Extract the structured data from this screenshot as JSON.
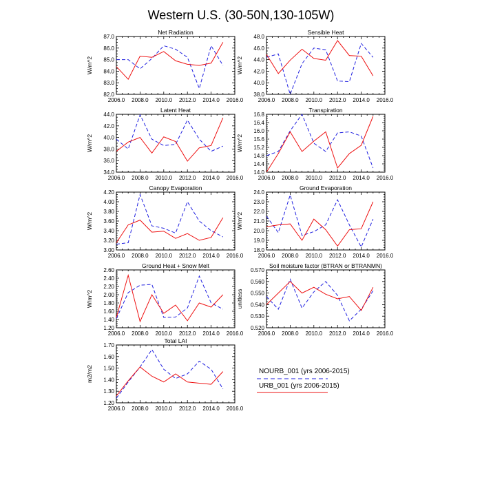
{
  "figure_title": "Western U.S. (30-50N,130-105W)",
  "colors": {
    "nourb": "#1f1fe0",
    "urb": "#ee1111",
    "axis": "#000000"
  },
  "legend": {
    "entries": [
      {
        "label": "NOURB_001 (yrs 2006-2015)",
        "series": "nourb",
        "style": "dashed"
      },
      {
        "label": "URB_001 (yrs 2006-2015)",
        "series": "urb",
        "style": "solid"
      }
    ]
  },
  "chart_data": [
    {
      "type": "line",
      "title": "Net Radiation",
      "ylabel": "W/m^2",
      "xlim": [
        2006,
        2016
      ],
      "ylim": [
        82,
        87
      ],
      "xticks": [
        "2006.0",
        "2008.0",
        "2010.0",
        "2012.0",
        "2014.0",
        "2016.0"
      ],
      "yticks": [
        "82.0",
        "83.0",
        "84.0",
        "85.0",
        "86.0",
        "87.0"
      ],
      "x": [
        2006,
        2007,
        2008,
        2009,
        2010,
        2011,
        2012,
        2013,
        2014,
        2015
      ],
      "series": [
        {
          "name": "NOURB_001",
          "values": [
            85.0,
            85.0,
            84.2,
            85.1,
            86.2,
            85.9,
            85.2,
            82.5,
            86.2,
            84.5
          ]
        },
        {
          "name": "URB_001",
          "values": [
            84.4,
            83.3,
            85.3,
            85.2,
            85.7,
            84.9,
            84.6,
            84.5,
            84.7,
            86.5
          ]
        }
      ]
    },
    {
      "type": "line",
      "title": "Sensible Heat",
      "ylabel": "W/m^2",
      "xlim": [
        2006,
        2016
      ],
      "ylim": [
        38,
        48
      ],
      "xticks": [
        "2006.0",
        "2008.0",
        "2010.0",
        "2012.0",
        "2014.0",
        "2016.0"
      ],
      "yticks": [
        "38.0",
        "40.0",
        "42.0",
        "44.0",
        "46.0",
        "48.0"
      ],
      "x": [
        2006,
        2007,
        2008,
        2009,
        2010,
        2011,
        2012,
        2013,
        2014,
        2015
      ],
      "series": [
        {
          "name": "NOURB_001",
          "values": [
            44.4,
            45.0,
            38.0,
            43.3,
            46.0,
            45.7,
            40.3,
            40.2,
            46.8,
            44.4
          ]
        },
        {
          "name": "URB_001",
          "values": [
            44.9,
            41.6,
            43.9,
            45.8,
            44.2,
            43.9,
            47.3,
            44.7,
            44.6,
            41.2
          ]
        }
      ]
    },
    {
      "type": "line",
      "title": "Latent Heat",
      "ylabel": "W/m^2",
      "xlim": [
        2006,
        2016
      ],
      "ylim": [
        34,
        44
      ],
      "xticks": [
        "2006.0",
        "2008.0",
        "2010.0",
        "2012.0",
        "2014.0",
        "2016.0"
      ],
      "yticks": [
        "34.0",
        "36.0",
        "38.0",
        "40.0",
        "42.0",
        "44.0"
      ],
      "x": [
        2006,
        2007,
        2008,
        2009,
        2010,
        2011,
        2012,
        2013,
        2014,
        2015
      ],
      "series": [
        {
          "name": "NOURB_001",
          "values": [
            39.7,
            38.0,
            43.9,
            39.7,
            38.6,
            38.8,
            43.0,
            39.7,
            37.6,
            38.5
          ]
        },
        {
          "name": "URB_001",
          "values": [
            37.6,
            39.2,
            40.0,
            37.3,
            40.1,
            39.3,
            35.9,
            38.2,
            38.6,
            43.4
          ]
        }
      ]
    },
    {
      "type": "line",
      "title": "Transpiration",
      "ylabel": "W/m^2",
      "xlim": [
        2006,
        2016
      ],
      "ylim": [
        14.0,
        16.8
      ],
      "xticks": [
        "2006.0",
        "2008.0",
        "2010.0",
        "2012.0",
        "2014.0",
        "2016.0"
      ],
      "yticks": [
        "14.0",
        "14.4",
        "14.8",
        "15.2",
        "15.6",
        "16.0",
        "16.4",
        "16.8"
      ],
      "x": [
        2006,
        2007,
        2008,
        2009,
        2010,
        2011,
        2012,
        2013,
        2014,
        2015
      ],
      "series": [
        {
          "name": "NOURB_001",
          "values": [
            14.8,
            15.0,
            16.0,
            16.8,
            15.4,
            15.0,
            15.9,
            15.95,
            15.75,
            14.2
          ]
        },
        {
          "name": "URB_001",
          "values": [
            14.0,
            14.9,
            15.95,
            15.0,
            15.5,
            15.95,
            14.2,
            14.9,
            15.3,
            16.7
          ]
        }
      ]
    },
    {
      "type": "line",
      "title": "Canopy Evaporation",
      "ylabel": "W/m^2",
      "xlim": [
        2006,
        2016
      ],
      "ylim": [
        3.0,
        4.2
      ],
      "xticks": [
        "2006.0",
        "2008.0",
        "2010.0",
        "2012.0",
        "2014.0",
        "2016.0"
      ],
      "yticks": [
        "3.00",
        "3.20",
        "3.40",
        "3.60",
        "3.80",
        "4.00",
        "4.20"
      ],
      "x": [
        2006,
        2007,
        2008,
        2009,
        2010,
        2011,
        2012,
        2013,
        2014,
        2015
      ],
      "series": [
        {
          "name": "NOURB_001",
          "values": [
            3.12,
            3.15,
            4.15,
            3.5,
            3.45,
            3.35,
            4.0,
            3.6,
            3.4,
            3.27
          ]
        },
        {
          "name": "URB_001",
          "values": [
            3.15,
            3.52,
            3.62,
            3.37,
            3.39,
            3.24,
            3.34,
            3.2,
            3.26,
            3.67
          ]
        }
      ]
    },
    {
      "type": "line",
      "title": "Ground Evaporation",
      "ylabel": "W/m^2",
      "xlim": [
        2006,
        2016
      ],
      "ylim": [
        18,
        24
      ],
      "xticks": [
        "2006.0",
        "2008.0",
        "2010.0",
        "2012.0",
        "2014.0",
        "2016.0"
      ],
      "yticks": [
        "18.0",
        "19.0",
        "20.0",
        "21.0",
        "22.0",
        "23.0",
        "24.0"
      ],
      "x": [
        2006,
        2007,
        2008,
        2009,
        2010,
        2011,
        2012,
        2013,
        2014,
        2015
      ],
      "series": [
        {
          "name": "NOURB_001",
          "values": [
            21.5,
            19.8,
            23.7,
            19.5,
            19.9,
            20.6,
            23.2,
            20.6,
            18.3,
            21.2
          ]
        },
        {
          "name": "URB_001",
          "values": [
            20.4,
            20.6,
            20.7,
            19.0,
            21.2,
            20.1,
            18.4,
            20.1,
            20.2,
            23.0
          ]
        }
      ]
    },
    {
      "type": "line",
      "title": "Ground Heat + Snow Melt",
      "ylabel": "W/m^2",
      "xlim": [
        2006,
        2016
      ],
      "ylim": [
        1.2,
        2.6
      ],
      "xticks": [
        "2006.0",
        "2008.0",
        "2010.0",
        "2012.0",
        "2014.0",
        "2016.0"
      ],
      "yticks": [
        "1.20",
        "1.40",
        "1.60",
        "1.80",
        "2.00",
        "2.20",
        "2.40",
        "2.60"
      ],
      "x": [
        2006,
        2007,
        2008,
        2009,
        2010,
        2011,
        2012,
        2013,
        2014,
        2015
      ],
      "series": [
        {
          "name": "NOURB_001",
          "values": [
            1.42,
            2.05,
            2.23,
            2.25,
            1.45,
            1.46,
            1.68,
            2.45,
            1.8,
            1.65
          ]
        },
        {
          "name": "URB_001",
          "values": [
            1.45,
            2.47,
            1.35,
            2.0,
            1.55,
            1.75,
            1.37,
            1.8,
            1.7,
            2.0
          ]
        }
      ]
    },
    {
      "type": "line",
      "title": "Soil moisture factor (BTRAN or BTRANMN)",
      "ylabel": "unitless",
      "xlim": [
        2006,
        2016
      ],
      "ylim": [
        0.52,
        0.57
      ],
      "xticks": [
        "2006.0",
        "2008.0",
        "2010.0",
        "2012.0",
        "2014.0",
        "2016.0"
      ],
      "yticks": [
        "0.520",
        "0.530",
        "0.540",
        "0.550",
        "0.560",
        "0.570"
      ],
      "x": [
        2006,
        2007,
        2008,
        2009,
        2010,
        2011,
        2012,
        2013,
        2014,
        2015
      ],
      "series": [
        {
          "name": "NOURB_001",
          "values": [
            0.547,
            0.536,
            0.562,
            0.537,
            0.551,
            0.56,
            0.548,
            0.526,
            0.536,
            0.552
          ]
        },
        {
          "name": "URB_001",
          "values": [
            0.54,
            0.55,
            0.56,
            0.55,
            0.555,
            0.549,
            0.545,
            0.547,
            0.535,
            0.555
          ]
        }
      ]
    },
    {
      "type": "line",
      "title": "Total LAI",
      "ylabel": "m2/m2",
      "xlim": [
        2006,
        2016
      ],
      "ylim": [
        1.2,
        1.7
      ],
      "xticks": [
        "2006.0",
        "2008.0",
        "2010.0",
        "2012.0",
        "2014.0",
        "2016.0"
      ],
      "yticks": [
        "1.20",
        "1.30",
        "1.40",
        "1.50",
        "1.60",
        "1.70"
      ],
      "x": [
        2006,
        2007,
        2008,
        2009,
        2010,
        2011,
        2012,
        2013,
        2014,
        2015
      ],
      "series": [
        {
          "name": "NOURB_001",
          "values": [
            1.24,
            1.38,
            1.51,
            1.66,
            1.49,
            1.41,
            1.45,
            1.56,
            1.49,
            1.32
          ]
        },
        {
          "name": "URB_001",
          "values": [
            1.26,
            1.39,
            1.51,
            1.43,
            1.38,
            1.45,
            1.38,
            1.37,
            1.36,
            1.47
          ]
        }
      ]
    }
  ]
}
